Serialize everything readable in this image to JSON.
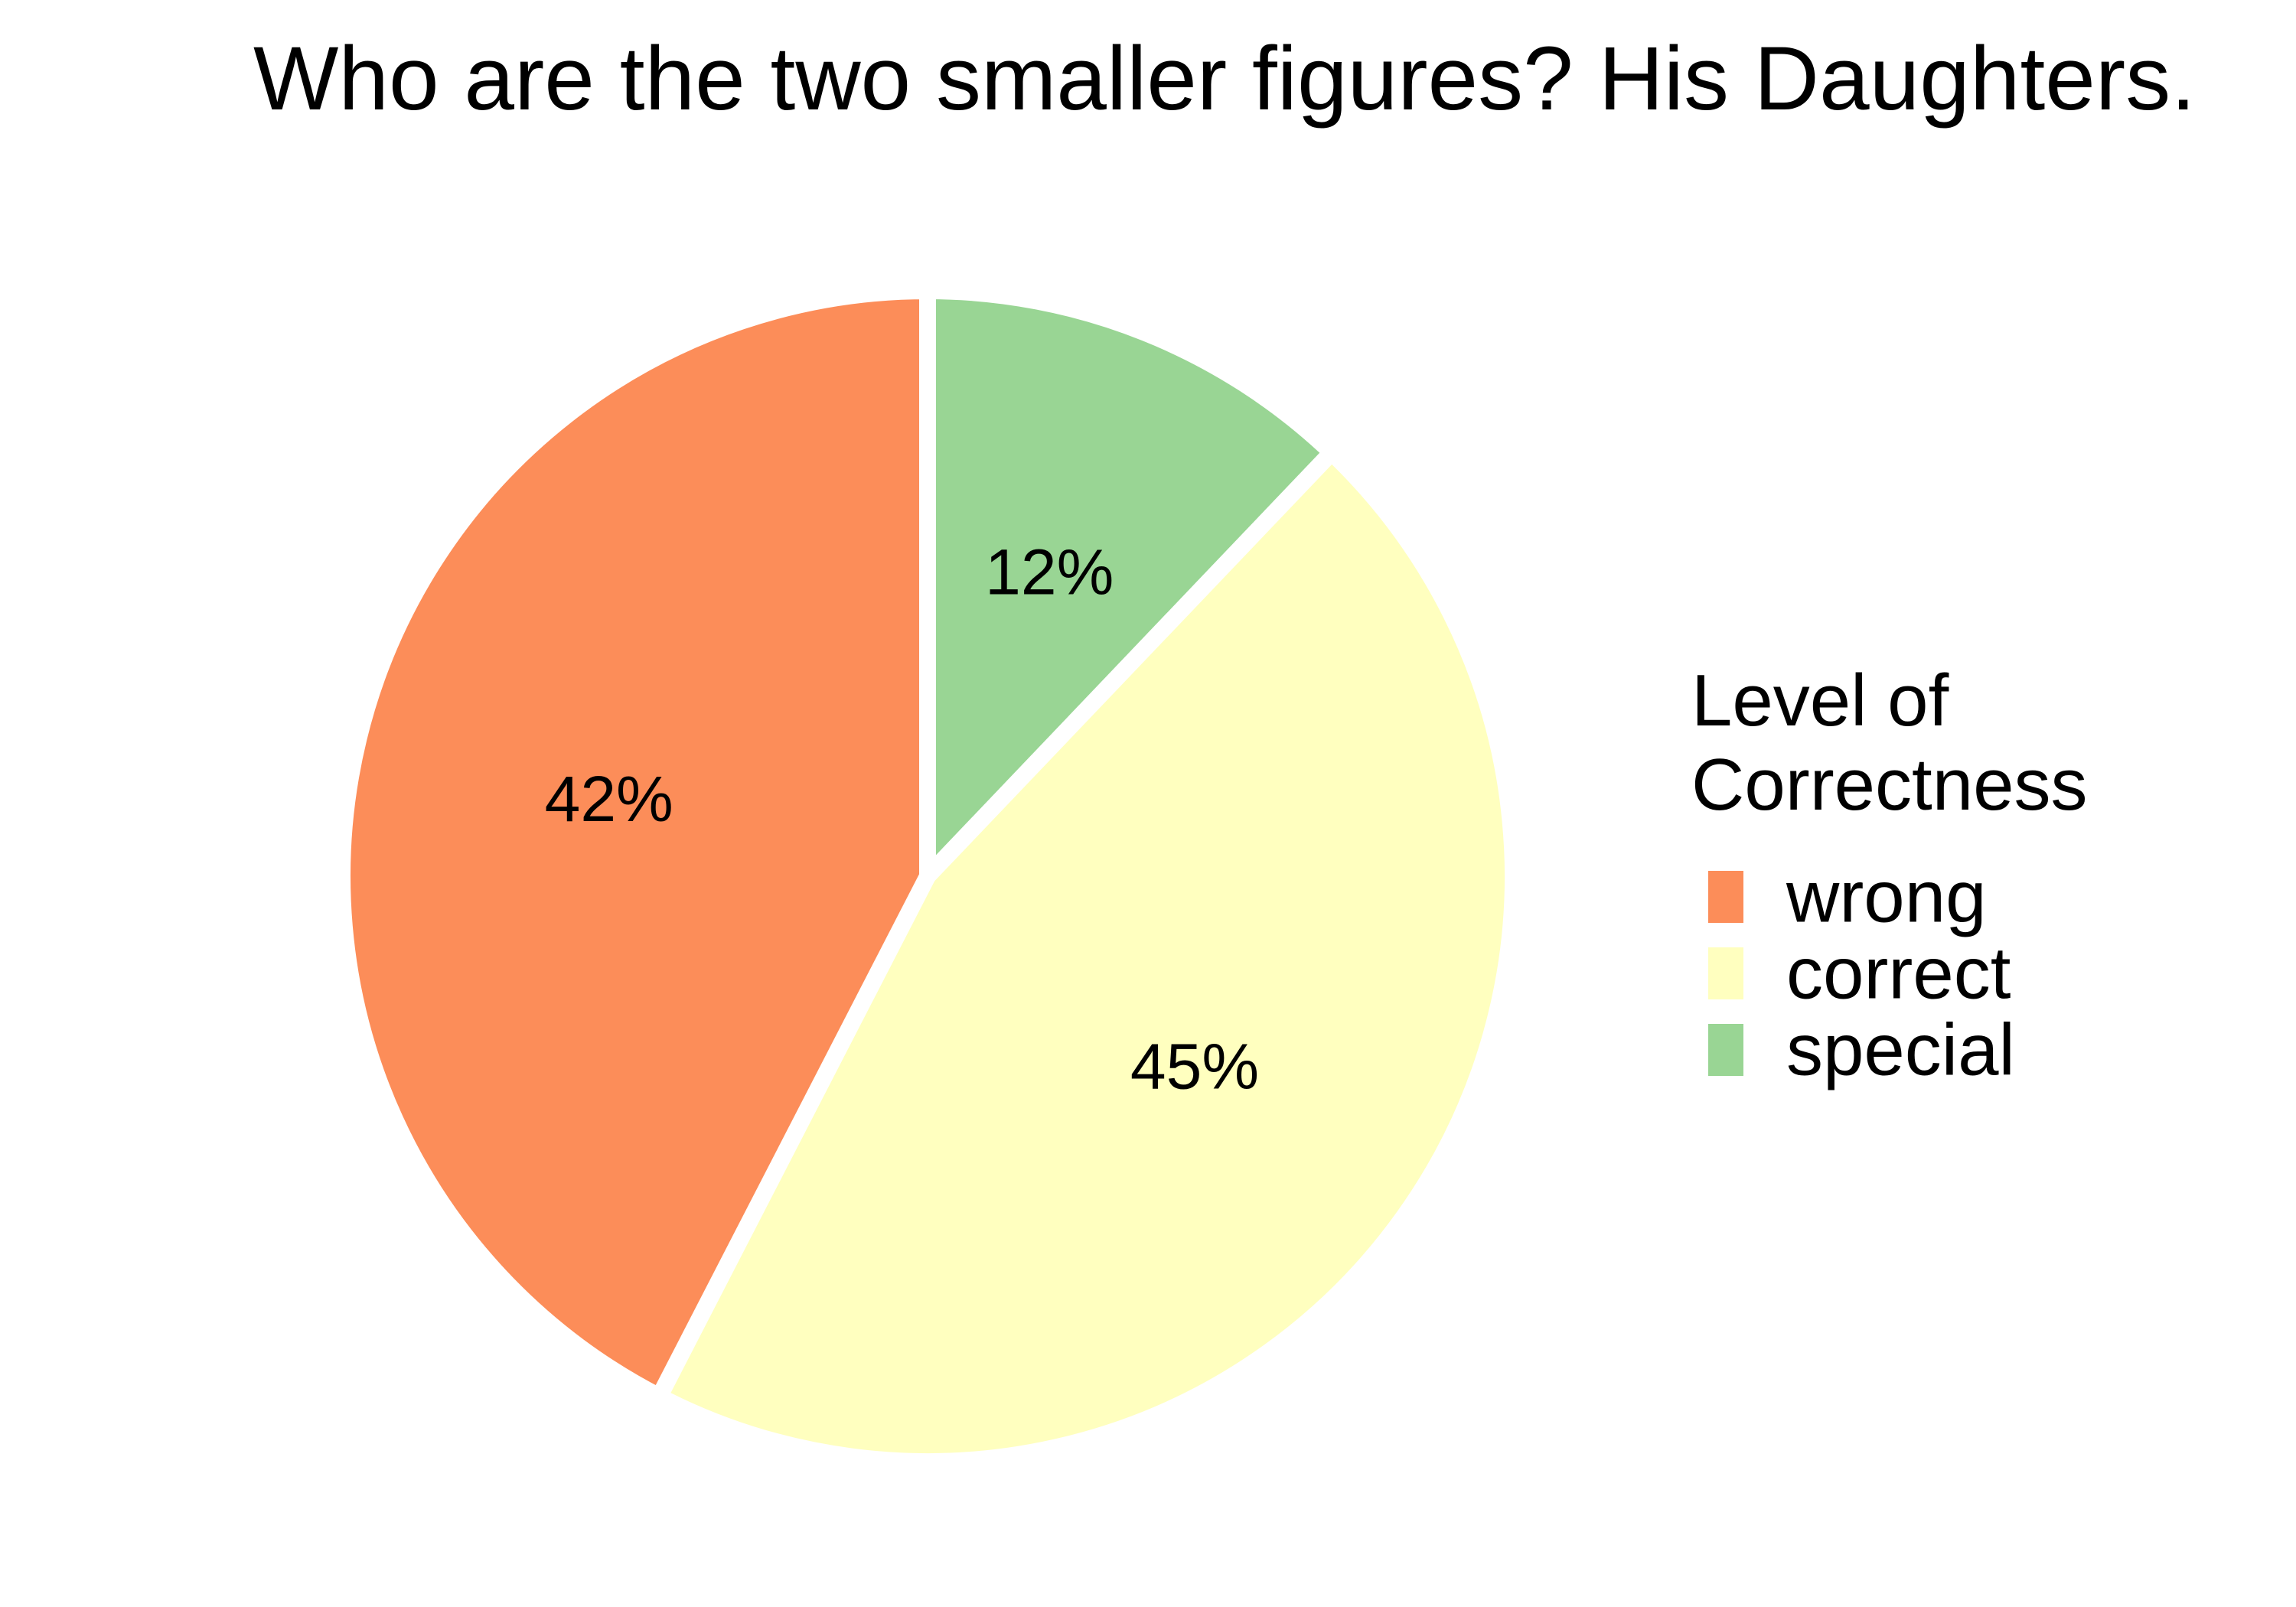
{
  "chart_data": {
    "type": "pie",
    "title": "Who are the two smaller figures? His Daughters.",
    "legend": {
      "title_lines": [
        "Level of",
        "Correctness"
      ],
      "placement": "right"
    },
    "slices": [
      {
        "label": "wrong",
        "value": 42,
        "display": "42%",
        "color": "#FC8D59"
      },
      {
        "label": "correct",
        "value": 45,
        "display": "45%",
        "color": "#FFFFBF"
      },
      {
        "label": "special",
        "value": 12,
        "display": "12%",
        "color": "#99D594"
      }
    ],
    "slice_border_color": "#FFFFFF"
  }
}
